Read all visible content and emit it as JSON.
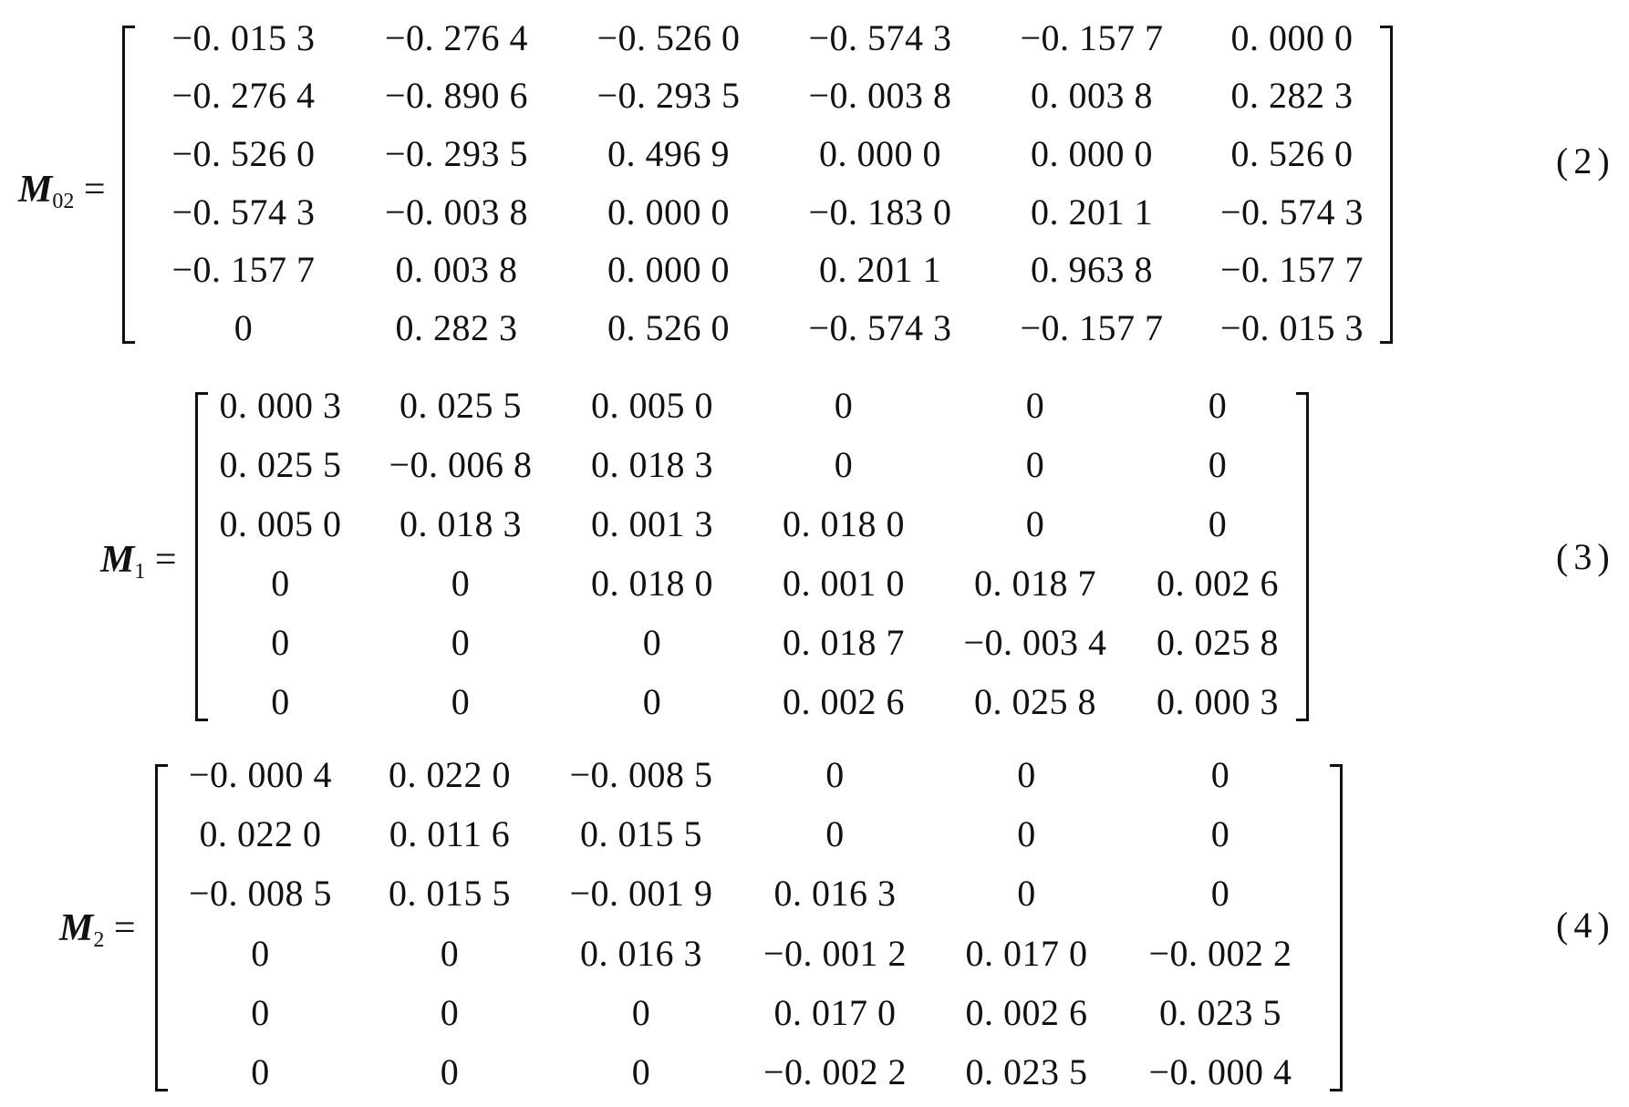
{
  "equations": [
    {
      "symbol": "M",
      "subscript": "02",
      "equals": "=",
      "number": "(2)",
      "rows": [
        [
          "−0. 015 3",
          "−0. 276 4",
          "−0. 526 0",
          "−0. 574 3",
          "−0. 157 7",
          "0. 000 0"
        ],
        [
          "−0. 276 4",
          "−0. 890 6",
          "−0. 293 5",
          "−0. 003 8",
          "0. 003 8",
          "0. 282 3"
        ],
        [
          "−0. 526 0",
          "−0. 293 5",
          "0. 496 9",
          "0. 000 0",
          "0. 000 0",
          "0. 526 0"
        ],
        [
          "−0. 574 3",
          "−0. 003 8",
          "0. 000 0",
          "−0. 183 0",
          "0. 201 1",
          "−0. 574 3"
        ],
        [
          "−0. 157 7",
          "0. 003 8",
          "0. 000 0",
          "0. 201 1",
          "0. 963 8",
          "−0. 157 7"
        ],
        [
          "0",
          "0. 282 3",
          "0. 526 0",
          "−0. 574 3",
          "−0. 157 7",
          "−0. 015 3"
        ]
      ]
    },
    {
      "symbol": "M",
      "subscript": "1",
      "equals": "=",
      "number": "(3)",
      "rows": [
        [
          "0. 000 3",
          "0. 025 5",
          "0. 005 0",
          "0",
          "0",
          "0"
        ],
        [
          "0. 025 5",
          "−0. 006 8",
          "0. 018 3",
          "0",
          "0",
          "0"
        ],
        [
          "0. 005 0",
          "0. 018 3",
          "0. 001 3",
          "0. 018 0",
          "0",
          "0"
        ],
        [
          "0",
          "0",
          "0. 018 0",
          "0. 001 0",
          "0. 018 7",
          "0. 002 6"
        ],
        [
          "0",
          "0",
          "0",
          "0. 018 7",
          "−0. 003 4",
          "0. 025 8"
        ],
        [
          "0",
          "0",
          "0",
          "0. 002 6",
          "0. 025 8",
          "0. 000 3"
        ]
      ]
    },
    {
      "symbol": "M",
      "subscript": "2",
      "equals": "=",
      "number": "(4)",
      "rows": [
        [
          "−0. 000 4",
          "0. 022 0",
          "−0. 008 5",
          "0",
          "0",
          "0"
        ],
        [
          "0. 022 0",
          "0. 011 6",
          "0. 015 5",
          "0",
          "0",
          "0"
        ],
        [
          "−0. 008 5",
          "0. 015 5",
          "−0. 001 9",
          "0. 016 3",
          "0",
          "0"
        ],
        [
          "0",
          "0",
          "0. 016 3",
          "−0. 001 2",
          "0. 017 0",
          "−0. 002 2"
        ],
        [
          "0",
          "0",
          "0",
          "0. 017 0",
          "0. 002 6",
          "0. 023 5"
        ],
        [
          "0",
          "0",
          "0",
          "−0. 002 2",
          "0. 023 5",
          "−0. 000 4"
        ]
      ]
    }
  ]
}
